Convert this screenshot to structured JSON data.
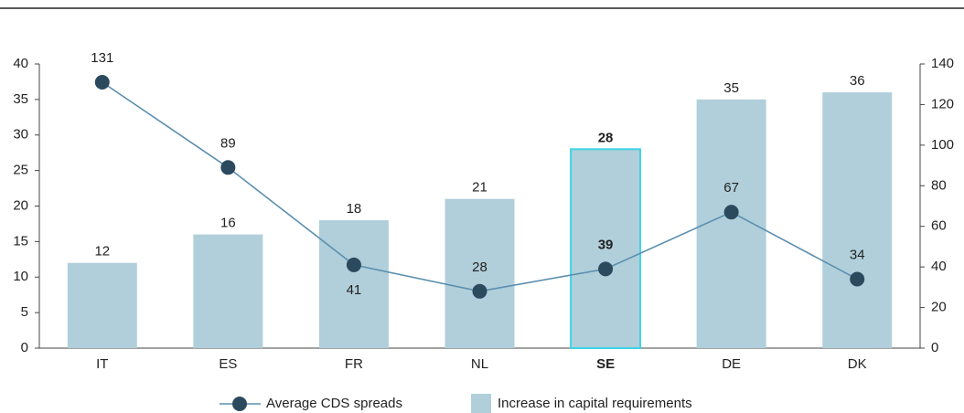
{
  "chart_data": {
    "type": "bar_line",
    "categories": [
      "IT",
      "ES",
      "FR",
      "NL",
      "SE",
      "DE",
      "DK"
    ],
    "highlight": "SE",
    "series": [
      {
        "name": "Increase in capital requirements",
        "type": "bar",
        "color": "#b0cfda",
        "values": [
          12,
          16,
          18,
          21,
          28,
          35,
          36
        ]
      },
      {
        "name": "Average CDS spreads",
        "type": "line",
        "axis": "y2",
        "color": "#5b8fb0",
        "marker_color": "#2b4a5e",
        "values": [
          131,
          89,
          41,
          28,
          39,
          67,
          34
        ]
      }
    ],
    "ylim": [
      0,
      40
    ],
    "yticks": [
      0,
      5,
      10,
      15,
      20,
      25,
      30,
      35,
      40
    ],
    "y2lim": [
      0,
      140
    ],
    "y2ticks": [
      0,
      20,
      40,
      60,
      80,
      100,
      120,
      140
    ],
    "highlight_color": "#3fd3e8"
  }
}
